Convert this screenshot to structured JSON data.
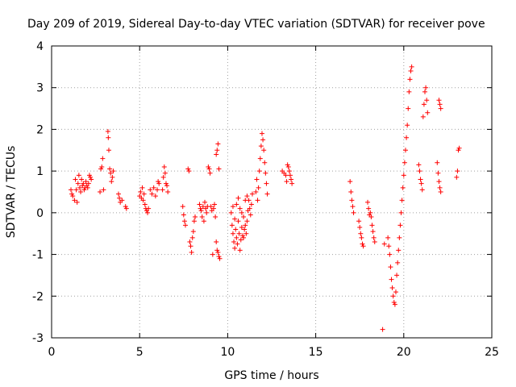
{
  "chart_data": {
    "type": "scatter",
    "title": "Day 209 of 2019, Sidereal Day-to-day VTEC variation (SDTVAR) for receiver pove",
    "xlabel": "GPS time / hours",
    "ylabel": "SDTVAR / TECUs",
    "xlim": [
      0,
      25
    ],
    "ylim": [
      -3,
      4
    ],
    "xticks": [
      0,
      5,
      10,
      15,
      20,
      25
    ],
    "yticks": [
      -3,
      -2,
      -1,
      0,
      1,
      2,
      3,
      4
    ],
    "grid": true,
    "marker": "+",
    "color": "#ff0000",
    "series": [
      {
        "name": "SDTVAR",
        "points": [
          [
            1.1,
            0.55
          ],
          [
            1.15,
            0.45
          ],
          [
            1.2,
            0.4
          ],
          [
            1.3,
            0.3
          ],
          [
            1.35,
            0.8
          ],
          [
            1.4,
            0.55
          ],
          [
            1.45,
            0.25
          ],
          [
            1.5,
            0.7
          ],
          [
            1.55,
            0.9
          ],
          [
            1.6,
            0.6
          ],
          [
            1.65,
            0.5
          ],
          [
            1.7,
            0.8
          ],
          [
            1.75,
            0.65
          ],
          [
            1.8,
            0.7
          ],
          [
            1.85,
            0.55
          ],
          [
            1.9,
            0.6
          ],
          [
            1.95,
            0.75
          ],
          [
            2.0,
            0.65
          ],
          [
            2.05,
            0.6
          ],
          [
            2.1,
            0.7
          ],
          [
            2.15,
            0.9
          ],
          [
            2.2,
            0.85
          ],
          [
            2.25,
            0.8
          ],
          [
            2.75,
            0.5
          ],
          [
            2.8,
            1.05
          ],
          [
            2.85,
            1.1
          ],
          [
            2.9,
            1.3
          ],
          [
            2.95,
            0.55
          ],
          [
            3.2,
            1.95
          ],
          [
            3.22,
            1.8
          ],
          [
            3.25,
            1.5
          ],
          [
            3.3,
            1.05
          ],
          [
            3.35,
            0.95
          ],
          [
            3.4,
            0.75
          ],
          [
            3.45,
            0.85
          ],
          [
            3.5,
            1.0
          ],
          [
            3.8,
            0.45
          ],
          [
            3.85,
            0.35
          ],
          [
            3.9,
            0.25
          ],
          [
            4.0,
            0.3
          ],
          [
            4.2,
            0.15
          ],
          [
            4.25,
            0.1
          ],
          [
            5.0,
            0.4
          ],
          [
            5.05,
            0.5
          ],
          [
            5.1,
            0.35
          ],
          [
            5.15,
            0.6
          ],
          [
            5.2,
            0.3
          ],
          [
            5.25,
            0.45
          ],
          [
            5.3,
            0.2
          ],
          [
            5.35,
            0.1
          ],
          [
            5.4,
            0.05
          ],
          [
            5.45,
            0.0
          ],
          [
            5.5,
            0.1
          ],
          [
            5.6,
            0.55
          ],
          [
            5.7,
            0.45
          ],
          [
            5.8,
            0.6
          ],
          [
            5.9,
            0.4
          ],
          [
            6.0,
            0.55
          ],
          [
            6.05,
            0.75
          ],
          [
            6.1,
            0.7
          ],
          [
            6.3,
            0.55
          ],
          [
            6.35,
            0.85
          ],
          [
            6.4,
            1.1
          ],
          [
            6.45,
            0.95
          ],
          [
            6.5,
            0.7
          ],
          [
            6.55,
            0.65
          ],
          [
            6.6,
            0.5
          ],
          [
            7.45,
            0.15
          ],
          [
            7.5,
            -0.05
          ],
          [
            7.55,
            -0.2
          ],
          [
            7.6,
            -0.3
          ],
          [
            7.75,
            1.05
          ],
          [
            7.8,
            1.0
          ],
          [
            7.85,
            -0.7
          ],
          [
            7.9,
            -0.8
          ],
          [
            7.95,
            -0.95
          ],
          [
            8.0,
            -0.6
          ],
          [
            8.05,
            -0.45
          ],
          [
            8.1,
            -0.2
          ],
          [
            8.15,
            -0.1
          ],
          [
            8.4,
            0.2
          ],
          [
            8.45,
            0.1
          ],
          [
            8.5,
            0.05
          ],
          [
            8.55,
            -0.1
          ],
          [
            8.6,
            0.15
          ],
          [
            8.65,
            -0.2
          ],
          [
            8.7,
            0.25
          ],
          [
            8.75,
            0.1
          ],
          [
            8.8,
            0.0
          ],
          [
            8.85,
            0.15
          ],
          [
            8.9,
            1.1
          ],
          [
            8.95,
            1.05
          ],
          [
            9.0,
            0.95
          ],
          [
            9.05,
            0.15
          ],
          [
            9.1,
            0.05
          ],
          [
            9.15,
            -1.0
          ],
          [
            9.2,
            0.1
          ],
          [
            9.25,
            0.2
          ],
          [
            9.3,
            -0.1
          ],
          [
            9.35,
            -0.7
          ],
          [
            9.4,
            -0.9
          ],
          [
            9.45,
            -0.95
          ],
          [
            9.5,
            -1.05
          ],
          [
            9.55,
            -1.1
          ],
          [
            9.35,
            1.4
          ],
          [
            9.4,
            1.5
          ],
          [
            9.45,
            1.65
          ],
          [
            9.5,
            1.05
          ],
          [
            10.2,
            0.0
          ],
          [
            10.25,
            -0.3
          ],
          [
            10.3,
            -0.5
          ],
          [
            10.35,
            -0.7
          ],
          [
            10.4,
            -0.85
          ],
          [
            10.45,
            -0.4
          ],
          [
            10.5,
            -0.6
          ],
          [
            10.55,
            -0.75
          ],
          [
            10.6,
            -0.2
          ],
          [
            10.65,
            -0.5
          ],
          [
            10.7,
            -0.9
          ],
          [
            10.75,
            -0.65
          ],
          [
            10.8,
            -0.35
          ],
          [
            10.85,
            -0.55
          ],
          [
            10.9,
            -0.6
          ],
          [
            10.95,
            -0.4
          ],
          [
            11.0,
            -0.3
          ],
          [
            11.05,
            -0.5
          ],
          [
            11.1,
            -0.2
          ],
          [
            11.15,
            0.05
          ],
          [
            11.2,
            0.3
          ],
          [
            11.25,
            0.1
          ],
          [
            11.3,
            -0.05
          ],
          [
            11.35,
            0.2
          ],
          [
            11.4,
            0.45
          ],
          [
            10.5,
            0.2
          ],
          [
            10.6,
            0.35
          ],
          [
            10.7,
            0.1
          ],
          [
            10.8,
            0.0
          ],
          [
            10.9,
            -0.1
          ],
          [
            10.4,
            -0.15
          ],
          [
            11.0,
            0.3
          ],
          [
            11.1,
            0.4
          ],
          [
            10.3,
            0.15
          ],
          [
            11.6,
            0.5
          ],
          [
            11.65,
            0.8
          ],
          [
            11.7,
            0.3
          ],
          [
            11.75,
            0.6
          ],
          [
            11.8,
            1.0
          ],
          [
            11.85,
            1.3
          ],
          [
            11.9,
            1.6
          ],
          [
            11.95,
            1.9
          ],
          [
            12.0,
            1.75
          ],
          [
            12.05,
            1.5
          ],
          [
            12.1,
            1.2
          ],
          [
            12.15,
            0.95
          ],
          [
            12.2,
            0.7
          ],
          [
            12.25,
            0.45
          ],
          [
            13.1,
            1.0
          ],
          [
            13.2,
            0.95
          ],
          [
            13.3,
            0.9
          ],
          [
            13.35,
            0.75
          ],
          [
            13.4,
            1.15
          ],
          [
            13.45,
            1.1
          ],
          [
            13.5,
            1.0
          ],
          [
            13.55,
            0.9
          ],
          [
            13.6,
            0.8
          ],
          [
            13.65,
            0.7
          ],
          [
            16.95,
            0.75
          ],
          [
            17.0,
            0.5
          ],
          [
            17.05,
            0.3
          ],
          [
            17.1,
            0.15
          ],
          [
            17.15,
            0.0
          ],
          [
            17.45,
            -0.2
          ],
          [
            17.5,
            -0.35
          ],
          [
            17.55,
            -0.5
          ],
          [
            17.6,
            -0.6
          ],
          [
            17.65,
            -0.75
          ],
          [
            17.7,
            -0.8
          ],
          [
            17.95,
            0.25
          ],
          [
            18.0,
            0.1
          ],
          [
            18.05,
            -0.05
          ],
          [
            18.1,
            0.0
          ],
          [
            18.15,
            -0.1
          ],
          [
            18.2,
            -0.3
          ],
          [
            18.25,
            -0.45
          ],
          [
            18.3,
            -0.6
          ],
          [
            18.35,
            -0.7
          ],
          [
            18.8,
            -2.8
          ],
          [
            18.9,
            -0.75
          ],
          [
            19.1,
            -0.6
          ],
          [
            19.15,
            -0.8
          ],
          [
            19.2,
            -1.0
          ],
          [
            19.25,
            -1.3
          ],
          [
            19.3,
            -1.6
          ],
          [
            19.35,
            -1.8
          ],
          [
            19.4,
            -2.0
          ],
          [
            19.45,
            -2.15
          ],
          [
            19.5,
            -2.2
          ],
          [
            19.55,
            -1.9
          ],
          [
            19.6,
            -1.5
          ],
          [
            19.65,
            -1.2
          ],
          [
            19.7,
            -0.9
          ],
          [
            19.75,
            -0.6
          ],
          [
            19.8,
            -0.3
          ],
          [
            19.85,
            0.0
          ],
          [
            19.9,
            0.3
          ],
          [
            19.95,
            0.6
          ],
          [
            20.0,
            0.9
          ],
          [
            20.05,
            1.2
          ],
          [
            20.1,
            1.5
          ],
          [
            20.15,
            1.8
          ],
          [
            20.2,
            2.1
          ],
          [
            20.25,
            2.5
          ],
          [
            20.3,
            2.9
          ],
          [
            20.35,
            3.2
          ],
          [
            20.4,
            3.4
          ],
          [
            20.45,
            3.5
          ],
          [
            20.85,
            1.15
          ],
          [
            20.9,
            1.0
          ],
          [
            20.95,
            0.8
          ],
          [
            21.0,
            0.7
          ],
          [
            21.05,
            0.55
          ],
          [
            21.1,
            2.3
          ],
          [
            21.15,
            2.6
          ],
          [
            21.2,
            2.9
          ],
          [
            21.25,
            3.0
          ],
          [
            21.3,
            2.7
          ],
          [
            21.35,
            2.4
          ],
          [
            21.9,
            1.2
          ],
          [
            21.95,
            0.95
          ],
          [
            22.0,
            0.75
          ],
          [
            22.05,
            0.6
          ],
          [
            22.1,
            0.5
          ],
          [
            22.0,
            2.7
          ],
          [
            22.05,
            2.6
          ],
          [
            22.1,
            2.5
          ],
          [
            23.0,
            0.85
          ],
          [
            23.05,
            1.0
          ],
          [
            23.1,
            1.5
          ],
          [
            23.15,
            1.55
          ]
        ]
      }
    ]
  }
}
